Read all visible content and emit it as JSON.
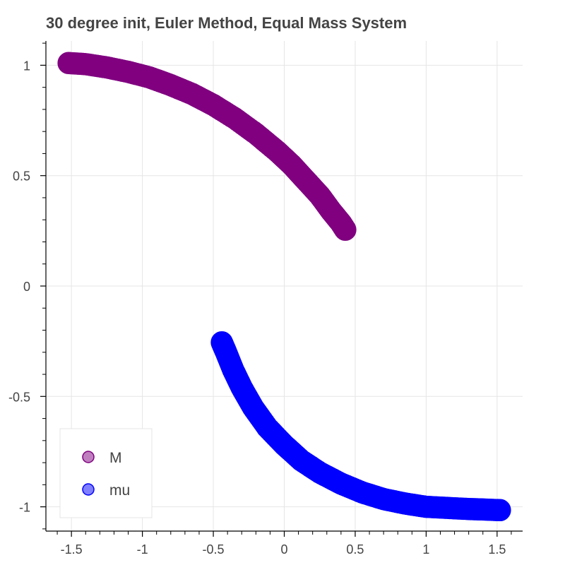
{
  "chart_data": {
    "type": "scatter",
    "title": "30 degree init, Euler Method, Equal Mass System",
    "xlabel": "",
    "ylabel": "",
    "xlim": [
      -1.68,
      1.68
    ],
    "ylim": [
      -1.11,
      1.11
    ],
    "xticks": [
      "-1.5",
      "-1",
      "-0.5",
      "0",
      "0.5",
      "1",
      "1.5"
    ],
    "yticks": [
      "-1",
      "-0.5",
      "0",
      "0.5",
      "1"
    ],
    "grid": true,
    "legend_position": "bottom-left",
    "series": [
      {
        "name": "M",
        "color": "#800080",
        "points": [
          [
            -1.52,
            1.01
          ],
          [
            -1.4,
            1.005
          ],
          [
            -1.25,
            0.99
          ],
          [
            -1.1,
            0.97
          ],
          [
            -0.95,
            0.945
          ],
          [
            -0.8,
            0.91
          ],
          [
            -0.65,
            0.87
          ],
          [
            -0.5,
            0.82
          ],
          [
            -0.35,
            0.76
          ],
          [
            -0.2,
            0.69
          ],
          [
            -0.05,
            0.61
          ],
          [
            0.05,
            0.55
          ],
          [
            0.15,
            0.48
          ],
          [
            0.25,
            0.41
          ],
          [
            0.33,
            0.34
          ],
          [
            0.4,
            0.285
          ],
          [
            0.43,
            0.255
          ]
        ]
      },
      {
        "name": "mu",
        "color": "#0000ff",
        "points": [
          [
            -0.44,
            -0.255
          ],
          [
            -0.41,
            -0.3
          ],
          [
            -0.36,
            -0.38
          ],
          [
            -0.3,
            -0.46
          ],
          [
            -0.22,
            -0.55
          ],
          [
            -0.12,
            -0.64
          ],
          [
            0.0,
            -0.72
          ],
          [
            0.12,
            -0.79
          ],
          [
            0.25,
            -0.845
          ],
          [
            0.4,
            -0.895
          ],
          [
            0.55,
            -0.935
          ],
          [
            0.7,
            -0.965
          ],
          [
            0.85,
            -0.985
          ],
          [
            1.0,
            -1.0
          ],
          [
            1.15,
            -1.005
          ],
          [
            1.3,
            -1.01
          ],
          [
            1.4,
            -1.012
          ],
          [
            1.52,
            -1.015
          ]
        ]
      }
    ]
  }
}
